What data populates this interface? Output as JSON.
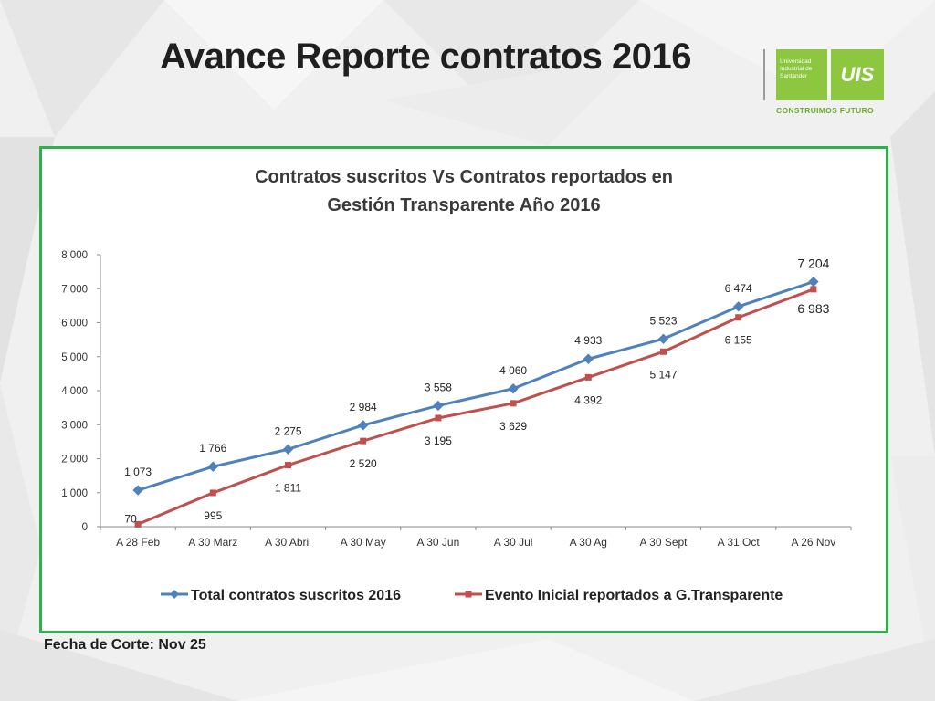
{
  "slide": {
    "title": "Avance Reporte contratos 2016",
    "footer": "Fecha de Corte: Nov 25"
  },
  "logo": {
    "university_name": "Universidad Industrial de Santander",
    "monogram": "UIS",
    "slogan": "CONSTRUIMOS FUTURO",
    "color": "#8dc63f"
  },
  "colors": {
    "frame_border": "#2db14a",
    "series_1": "#4f81bd",
    "series_2": "#c0504d"
  },
  "chart_data": {
    "type": "line",
    "title": "Contratos suscritos  Vs Contratos reportados en Gestión Transparente Año 2016",
    "title_lines": [
      "Contratos suscritos  Vs Contratos reportados en",
      "Gestión Transparente Año 2016"
    ],
    "categories": [
      "A 28 Feb",
      "A 30 Marz",
      "A 30 Abril",
      "A 30 May",
      "A 30 Jun",
      "A 30 Jul",
      "A 30 Ag",
      "A 30 Sept",
      "A 31 Oct",
      "A 26 Nov"
    ],
    "y_ticks": [
      "0",
      "1 000",
      "2 000",
      "3 000",
      "4 000",
      "5 000",
      "6 000",
      "7 000",
      "8 000"
    ],
    "ylim": [
      0,
      8000
    ],
    "grid": false,
    "legend_position": "bottom",
    "series": [
      {
        "name": "Total contratos suscritos 2016",
        "marker": "diamond",
        "values": [
          1073,
          1766,
          2275,
          2984,
          3558,
          4060,
          4933,
          5523,
          6474,
          7204
        ],
        "labels": [
          "1 073",
          "1 766",
          "2 275",
          "2 984",
          "3 558",
          "4 060",
          "4 933",
          "5 523",
          "6 474",
          "7 204"
        ]
      },
      {
        "name": "Evento Inicial reportados a G.Transparente",
        "marker": "square",
        "values": [
          70,
          995,
          1811,
          2520,
          3195,
          3629,
          4392,
          5147,
          6155,
          6983
        ],
        "labels": [
          "70",
          "995",
          "1 811",
          "2 520",
          "3 195",
          "3 629",
          "4 392",
          "5 147",
          "6 155",
          "6 983"
        ]
      }
    ]
  }
}
